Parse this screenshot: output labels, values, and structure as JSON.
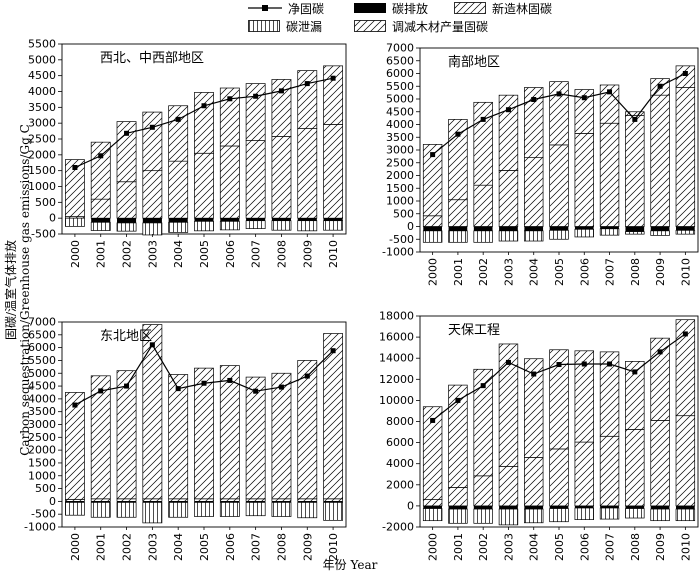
{
  "legend": {
    "net": "净固碳",
    "emission": "碳排放",
    "new_forest": "新造林固碳",
    "leakage": "碳泄漏",
    "wood_product": "调减木材产量固碳"
  },
  "axis_labels": {
    "y_cn": "固碳/温室气体排放",
    "y_en": "Carbon sequestration/Greenhouse gas emissions/Gg C",
    "x": "年份 Year"
  },
  "colors": {
    "ink": "#000000",
    "background": "#ffffff"
  },
  "chart_data": [
    {
      "type": "bar",
      "title": "西北、中西部地区",
      "categories": [
        "2000",
        "2001",
        "2002",
        "2003",
        "2004",
        "2005",
        "2006",
        "2007",
        "2008",
        "2009",
        "2010"
      ],
      "ylim": [
        -500,
        5500
      ],
      "yticks": [
        -500,
        0,
        500,
        1000,
        1500,
        2000,
        2500,
        3000,
        3500,
        4000,
        4500,
        5000,
        5500
      ],
      "series": [
        {
          "name": "新造林固碳",
          "values": [
            50,
            600,
            1150,
            1500,
            1800,
            2050,
            2280,
            2450,
            2580,
            2830,
            2960
          ]
        },
        {
          "name": "调减木材产量固碳",
          "values": [
            1800,
            1800,
            1900,
            1850,
            1750,
            1920,
            1830,
            1800,
            1800,
            1830,
            1850
          ]
        },
        {
          "name": "碳排放",
          "values": [
            0,
            -130,
            -150,
            -150,
            -130,
            -100,
            -100,
            -80,
            -80,
            -80,
            -80
          ]
        },
        {
          "name": "碳泄漏",
          "values": [
            -260,
            -260,
            -260,
            -380,
            -320,
            -300,
            -270,
            -250,
            -300,
            -320,
            -300
          ]
        },
        {
          "name": "净固碳",
          "values": [
            1600,
            1970,
            2680,
            2870,
            3120,
            3550,
            3770,
            3850,
            4020,
            4250,
            4420
          ]
        }
      ]
    },
    {
      "type": "bar",
      "title": "南部地区",
      "categories": [
        "2000",
        "2001",
        "2002",
        "2003",
        "2004",
        "2005",
        "2006",
        "2007",
        "2008",
        "2009",
        "2010"
      ],
      "ylim": [
        -1000,
        7000
      ],
      "yticks": [
        -1000,
        -500,
        0,
        500,
        1000,
        1500,
        2000,
        2500,
        3000,
        3500,
        4000,
        4500,
        5000,
        5500,
        6000,
        6500,
        7000
      ],
      "series": [
        {
          "name": "新造林固碳",
          "values": [
            420,
            1050,
            1620,
            2200,
            2700,
            3200,
            3650,
            4050,
            4350,
            5150,
            5450
          ]
        },
        {
          "name": "调减木材产量固碳",
          "values": [
            2800,
            3150,
            3250,
            2950,
            2750,
            2480,
            1720,
            1500,
            150,
            650,
            850
          ]
        },
        {
          "name": "碳排放",
          "values": [
            -170,
            -170,
            -170,
            -170,
            -170,
            -150,
            -110,
            -90,
            -200,
            -170,
            -150
          ]
        },
        {
          "name": "碳泄漏",
          "values": [
            -450,
            -450,
            -450,
            -400,
            -400,
            -350,
            -300,
            -250,
            -100,
            -180,
            -150
          ]
        },
        {
          "name": "净固碳",
          "values": [
            2820,
            3620,
            4200,
            4580,
            4980,
            5200,
            5050,
            5280,
            4200,
            5500,
            6000
          ]
        }
      ]
    },
    {
      "type": "bar",
      "title": "东北地区",
      "categories": [
        "2000",
        "2001",
        "2002",
        "2003",
        "2004",
        "2005",
        "2006",
        "2007",
        "2008",
        "2009",
        "2010"
      ],
      "ylim": [
        -1000,
        7000
      ],
      "yticks": [
        -1000,
        -500,
        0,
        500,
        1000,
        1500,
        2000,
        2500,
        3000,
        3500,
        4000,
        4500,
        5000,
        5500,
        6000,
        6500,
        7000
      ],
      "series": [
        {
          "name": "新造林固碳",
          "values": [
            80,
            100,
            100,
            100,
            100,
            100,
            100,
            100,
            100,
            100,
            100
          ]
        },
        {
          "name": "调减木材产量固碳",
          "values": [
            4170,
            4800,
            5000,
            6800,
            4850,
            5100,
            5200,
            4750,
            4900,
            5400,
            6450
          ]
        },
        {
          "name": "碳排放",
          "values": [
            -40,
            -40,
            -40,
            -40,
            -40,
            -40,
            -40,
            -40,
            -40,
            -40,
            -40
          ]
        },
        {
          "name": "碳泄漏",
          "values": [
            -500,
            -580,
            -580,
            -800,
            -580,
            -550,
            -550,
            -520,
            -550,
            -600,
            -700
          ]
        },
        {
          "name": "净固碳",
          "values": [
            3760,
            4310,
            4500,
            6110,
            4400,
            4610,
            4720,
            4300,
            4460,
            4890,
            5880
          ]
        }
      ]
    },
    {
      "type": "bar",
      "title": "天保工程",
      "categories": [
        "2000",
        "2001",
        "2002",
        "2003",
        "2004",
        "2005",
        "2006",
        "2007",
        "2008",
        "2009",
        "2010"
      ],
      "ylim": [
        -2000,
        18000
      ],
      "yticks": [
        -2000,
        0,
        2000,
        4000,
        6000,
        8000,
        10000,
        12000,
        14000,
        16000,
        18000
      ],
      "series": [
        {
          "name": "新造林固碳",
          "values": [
            600,
            1750,
            2850,
            3750,
            4600,
            5400,
            6050,
            6600,
            7250,
            8100,
            8550
          ]
        },
        {
          "name": "调减木材产量固碳",
          "values": [
            8800,
            9700,
            10100,
            11600,
            9350,
            9400,
            8650,
            8000,
            6450,
            7800,
            9100
          ]
        },
        {
          "name": "碳排放",
          "values": [
            -250,
            -300,
            -300,
            -300,
            -300,
            -250,
            -200,
            -200,
            -250,
            -300,
            -300
          ]
        },
        {
          "name": "碳泄漏",
          "values": [
            -1150,
            -1350,
            -1350,
            -1500,
            -1300,
            -1250,
            -1100,
            -1050,
            -900,
            -1100,
            -1100
          ]
        },
        {
          "name": "净固碳",
          "values": [
            8100,
            10000,
            11400,
            13600,
            12500,
            13400,
            13450,
            13450,
            12700,
            14600,
            16300
          ]
        }
      ]
    }
  ]
}
